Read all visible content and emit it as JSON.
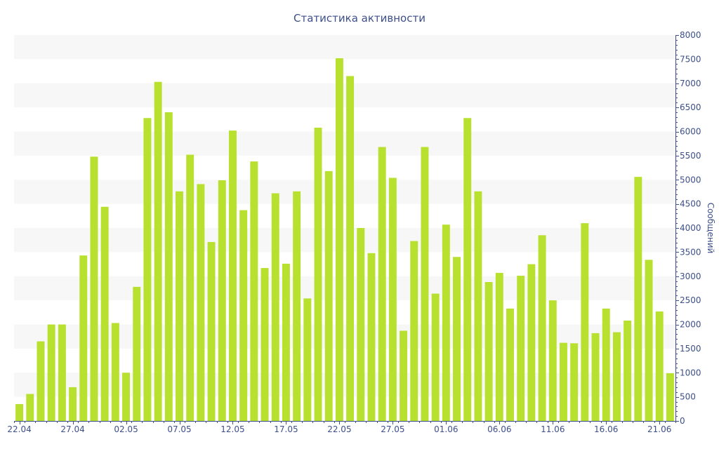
{
  "chart_data": {
    "type": "bar",
    "title": "Статистика активности",
    "ylabel": "Сообщений",
    "xlabel": "",
    "ylim": [
      0,
      8000
    ],
    "ytick_step": 500,
    "y_axis_side": "right",
    "grid": "alternating horizontal bands",
    "colors": {
      "bar": "#b8e02e",
      "band": "#f7f7f7",
      "text": "#3d4f8a",
      "axis": "#3d4f8a"
    },
    "x_tick_labels": [
      {
        "index": 0,
        "label": "22.04"
      },
      {
        "index": 5,
        "label": "27.04"
      },
      {
        "index": 10,
        "label": "02.05"
      },
      {
        "index": 15,
        "label": "07.05"
      },
      {
        "index": 20,
        "label": "12.05"
      },
      {
        "index": 25,
        "label": "17.05"
      },
      {
        "index": 30,
        "label": "22.05"
      },
      {
        "index": 35,
        "label": "27.05"
      },
      {
        "index": 40,
        "label": "01.06"
      },
      {
        "index": 45,
        "label": "06.06"
      },
      {
        "index": 50,
        "label": "11.06"
      },
      {
        "index": 55,
        "label": "16.06"
      },
      {
        "index": 60,
        "label": "21.06"
      }
    ],
    "values": [
      350,
      560,
      1650,
      2000,
      2000,
      700,
      3430,
      5480,
      4440,
      2030,
      1000,
      2780,
      6280,
      7030,
      6400,
      4760,
      5520,
      4910,
      3710,
      4990,
      6020,
      4370,
      5380,
      3170,
      4720,
      3260,
      4760,
      2540,
      6080,
      5180,
      7520,
      7150,
      4000,
      3480,
      5680,
      5040,
      1870,
      3730,
      5680,
      2640,
      4070,
      3400,
      6280,
      4760,
      2880,
      3070,
      2330,
      3010,
      3250,
      3850,
      2500,
      1620,
      1610,
      4100,
      1820,
      2330,
      1840,
      2080,
      5060,
      3340,
      2270,
      990
    ]
  }
}
